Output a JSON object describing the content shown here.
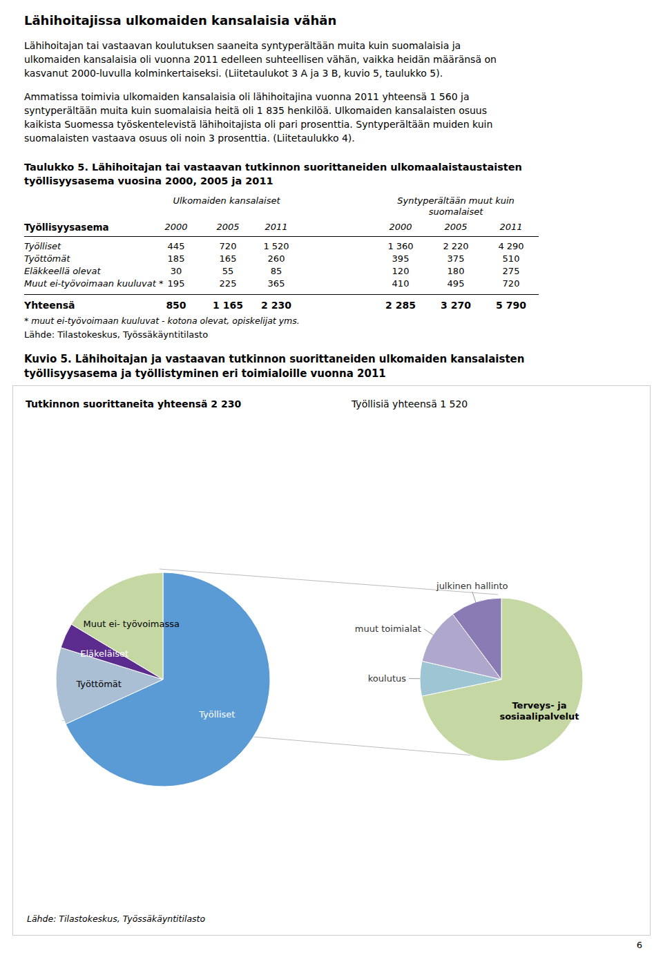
{
  "heading": "Lähihoitajissa ulkomaiden kansalaisia vähän",
  "paragraphs": [
    [
      "Lähihoitajan tai vastaavan koulutuksen saaneita syntyperältään muita kuin suomalaisia ja",
      "ulkomaiden kansalaisia oli vuonna 2011 edelleen suhteellisen vähän, vaikka heidän määränsä on",
      "kasvanut 2000-luvulla kolminkertaiseksi. (Liitetaulukot 3 A ja 3 B, kuvio 5, taulukko 5)."
    ],
    [
      "Ammatissa toimivia ulkomaiden kansalaisia oli lähihoitajina vuonna 2011 yhteensä 1 560 ja",
      "syntyperältään muita kuin suomalaisia heitä oli 1 835 henkilöä. Ulkomaiden kansalaisten osuus",
      "kaikista Suomessa työskentelevistä lähihoitajista oli pari prosenttia. Syntyperältään muiden kuin",
      "suomalaisten vastaava osuus oli noin 3 prosenttia. (Liitetaulukko 4)."
    ]
  ],
  "table": {
    "title": [
      "Taulukko 5. Lähihoitajan tai vastaavan tutkinnon suorittaneiden ulkomaalaistaustaisten",
      "työllisyysasema vuosina 2000, 2005 ja 2011"
    ],
    "column_groups": [
      [
        "Ulkomaiden kansalaiset"
      ],
      [
        "Syntyperältään muut kuin",
        "suomalaiset"
      ]
    ],
    "years": [
      "2000",
      "2005",
      "2011"
    ],
    "row_header": "Työllisyysasema",
    "rows": [
      {
        "label": "Työlliset",
        "uk": [
          "445",
          "720",
          "1 520"
        ],
        "sy": [
          "1 360",
          "2 220",
          "4 290"
        ]
      },
      {
        "label": "Työttömät",
        "uk": [
          "185",
          "165",
          "260"
        ],
        "sy": [
          "395",
          "375",
          "510"
        ]
      },
      {
        "label": "Eläkkeellä olevat",
        "uk": [
          "30",
          "55",
          "85"
        ],
        "sy": [
          "120",
          "180",
          "275"
        ]
      },
      {
        "label": "Muut ei-työvoimaan kuuluvat *",
        "uk": [
          "195",
          "225",
          "365"
        ],
        "sy": [
          "410",
          "495",
          "720"
        ]
      }
    ],
    "total": {
      "label": "Yhteensä",
      "uk": [
        "850",
        "1 165",
        "2 230"
      ],
      "sy": [
        "2 285",
        "3 270",
        "5 790"
      ]
    },
    "footnote": "* muut ei-työvoimaan kuuluvat - kotona olevat, opiskelijat yms.",
    "source": "Lähde: Tilastokeskus, Työssäkäyntitilasto"
  },
  "figure_title": [
    "Kuvio 5. Lähihoitajan ja vastaavan tutkinnon suorittaneiden ulkomaiden kansalaisten",
    "työllisyysasema ja työllistyminen eri toimialoille vuonna 2011"
  ],
  "figure_source": "Lähde: Tilastokeskus, Työssäkäyntitilasto",
  "page_number": "6",
  "chart_data": [
    {
      "type": "pie",
      "title": "Tutkinnon suorittaneita yhteensä 2 230",
      "categories": [
        "Työlliset",
        "Työttömät",
        "Eläkeläiset",
        "Muut ei- työvoimassa"
      ],
      "values": [
        1520,
        260,
        85,
        365
      ],
      "colors": [
        "#5B9BD5",
        "#AABFD4",
        "#5B2C8D",
        "#C5D8A4"
      ]
    },
    {
      "type": "pie",
      "title": "Työllisiä yhteensä 1 520",
      "categories": [
        "Terveys- ja\nsosiaalipalvelut",
        "koulutus",
        "muut toimialat",
        "julkinen hallinto"
      ],
      "values": [
        1090,
        105,
        170,
        155
      ],
      "colors": [
        "#C5D8A4",
        "#9DC5D4",
        "#B0A8CC",
        "#8B7BB5"
      ]
    }
  ]
}
